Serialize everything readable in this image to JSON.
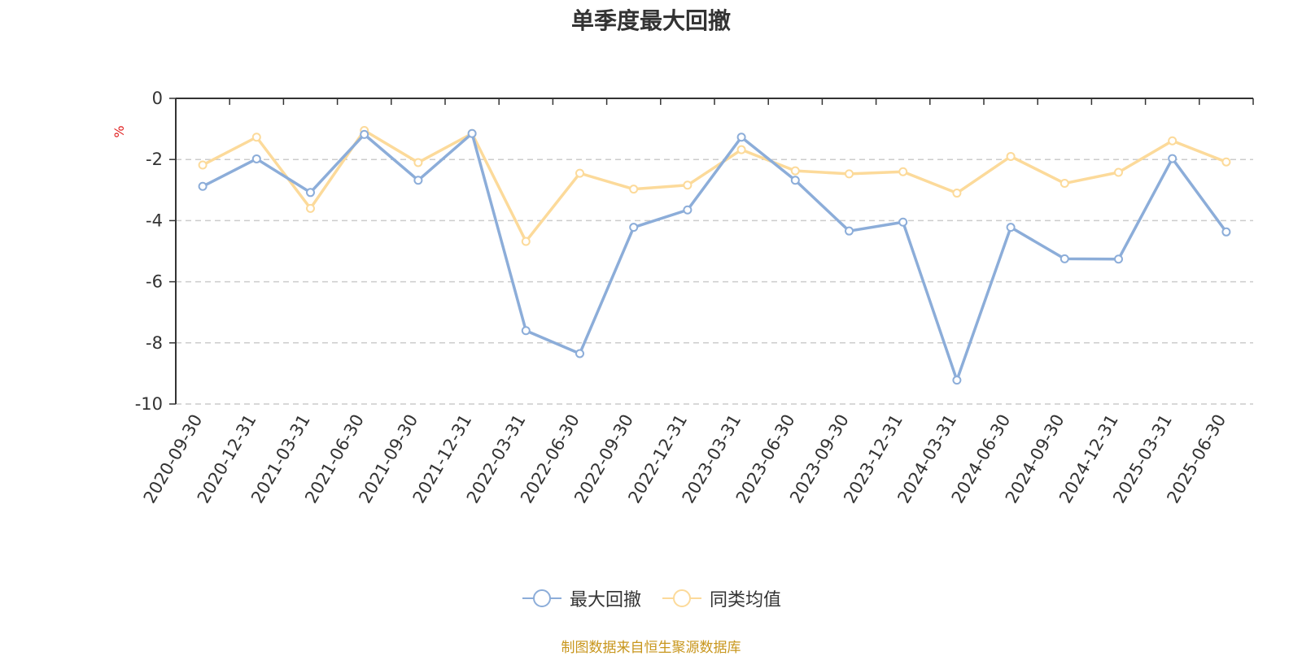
{
  "chart_data": {
    "type": "line",
    "title": "单季度最大回撤",
    "ylabel": "%",
    "ylim": [
      -10,
      0
    ],
    "yticks": [
      0,
      -2,
      -4,
      -6,
      -8,
      -10
    ],
    "grid": true,
    "legend_position": "bottom-center",
    "categories": [
      "2020-09-30",
      "2020-12-31",
      "2021-03-31",
      "2021-06-30",
      "2021-09-30",
      "2021-12-31",
      "2022-03-31",
      "2022-06-30",
      "2022-09-30",
      "2022-12-31",
      "2023-03-31",
      "2023-06-30",
      "2023-09-30",
      "2023-12-31",
      "2024-03-31",
      "2024-06-30",
      "2024-09-30",
      "2024-12-31",
      "2025-03-31",
      "2025-06-30"
    ],
    "series": [
      {
        "name": "最大回撤",
        "color": "#8cadd9",
        "values": [
          -2.88,
          -1.98,
          -3.08,
          -1.18,
          -2.68,
          -1.15,
          -7.6,
          -8.35,
          -4.22,
          -3.65,
          -1.27,
          -2.68,
          -4.34,
          -4.05,
          -9.22,
          -4.22,
          -5.25,
          -5.26,
          -1.97,
          -4.37
        ]
      },
      {
        "name": "同类均值",
        "color": "#fcda9a",
        "values": [
          -2.18,
          -1.27,
          -3.6,
          -1.05,
          -2.1,
          -1.15,
          -4.68,
          -2.45,
          -2.97,
          -2.84,
          -1.68,
          -2.37,
          -2.47,
          -2.4,
          -3.1,
          -1.9,
          -2.78,
          -2.42,
          -1.39,
          -2.08
        ]
      }
    ]
  },
  "colors": {
    "ylabel": "#e02020",
    "footer": "#c8961c",
    "axis": "#333333",
    "grid": "#cccccc"
  },
  "footer_text": "制图数据来自恒生聚源数据库"
}
